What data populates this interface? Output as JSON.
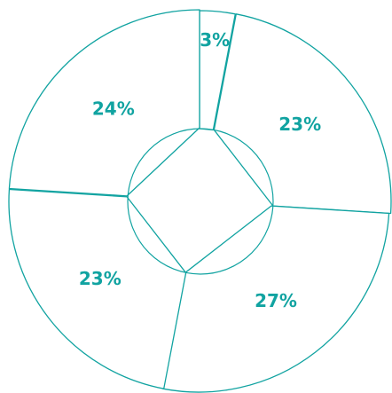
{
  "chart_data": {
    "type": "pie",
    "title": "",
    "slices": [
      {
        "label": "3%",
        "value": 3
      },
      {
        "label": "23%",
        "value": 23
      },
      {
        "label": "27%",
        "value": 27
      },
      {
        "label": "23%",
        "value": 23
      },
      {
        "label": "24%",
        "value": 24
      }
    ],
    "colors": {
      "stroke": "#11a3a1",
      "label": "#11a3a1",
      "fill": "#ffffff"
    }
  }
}
